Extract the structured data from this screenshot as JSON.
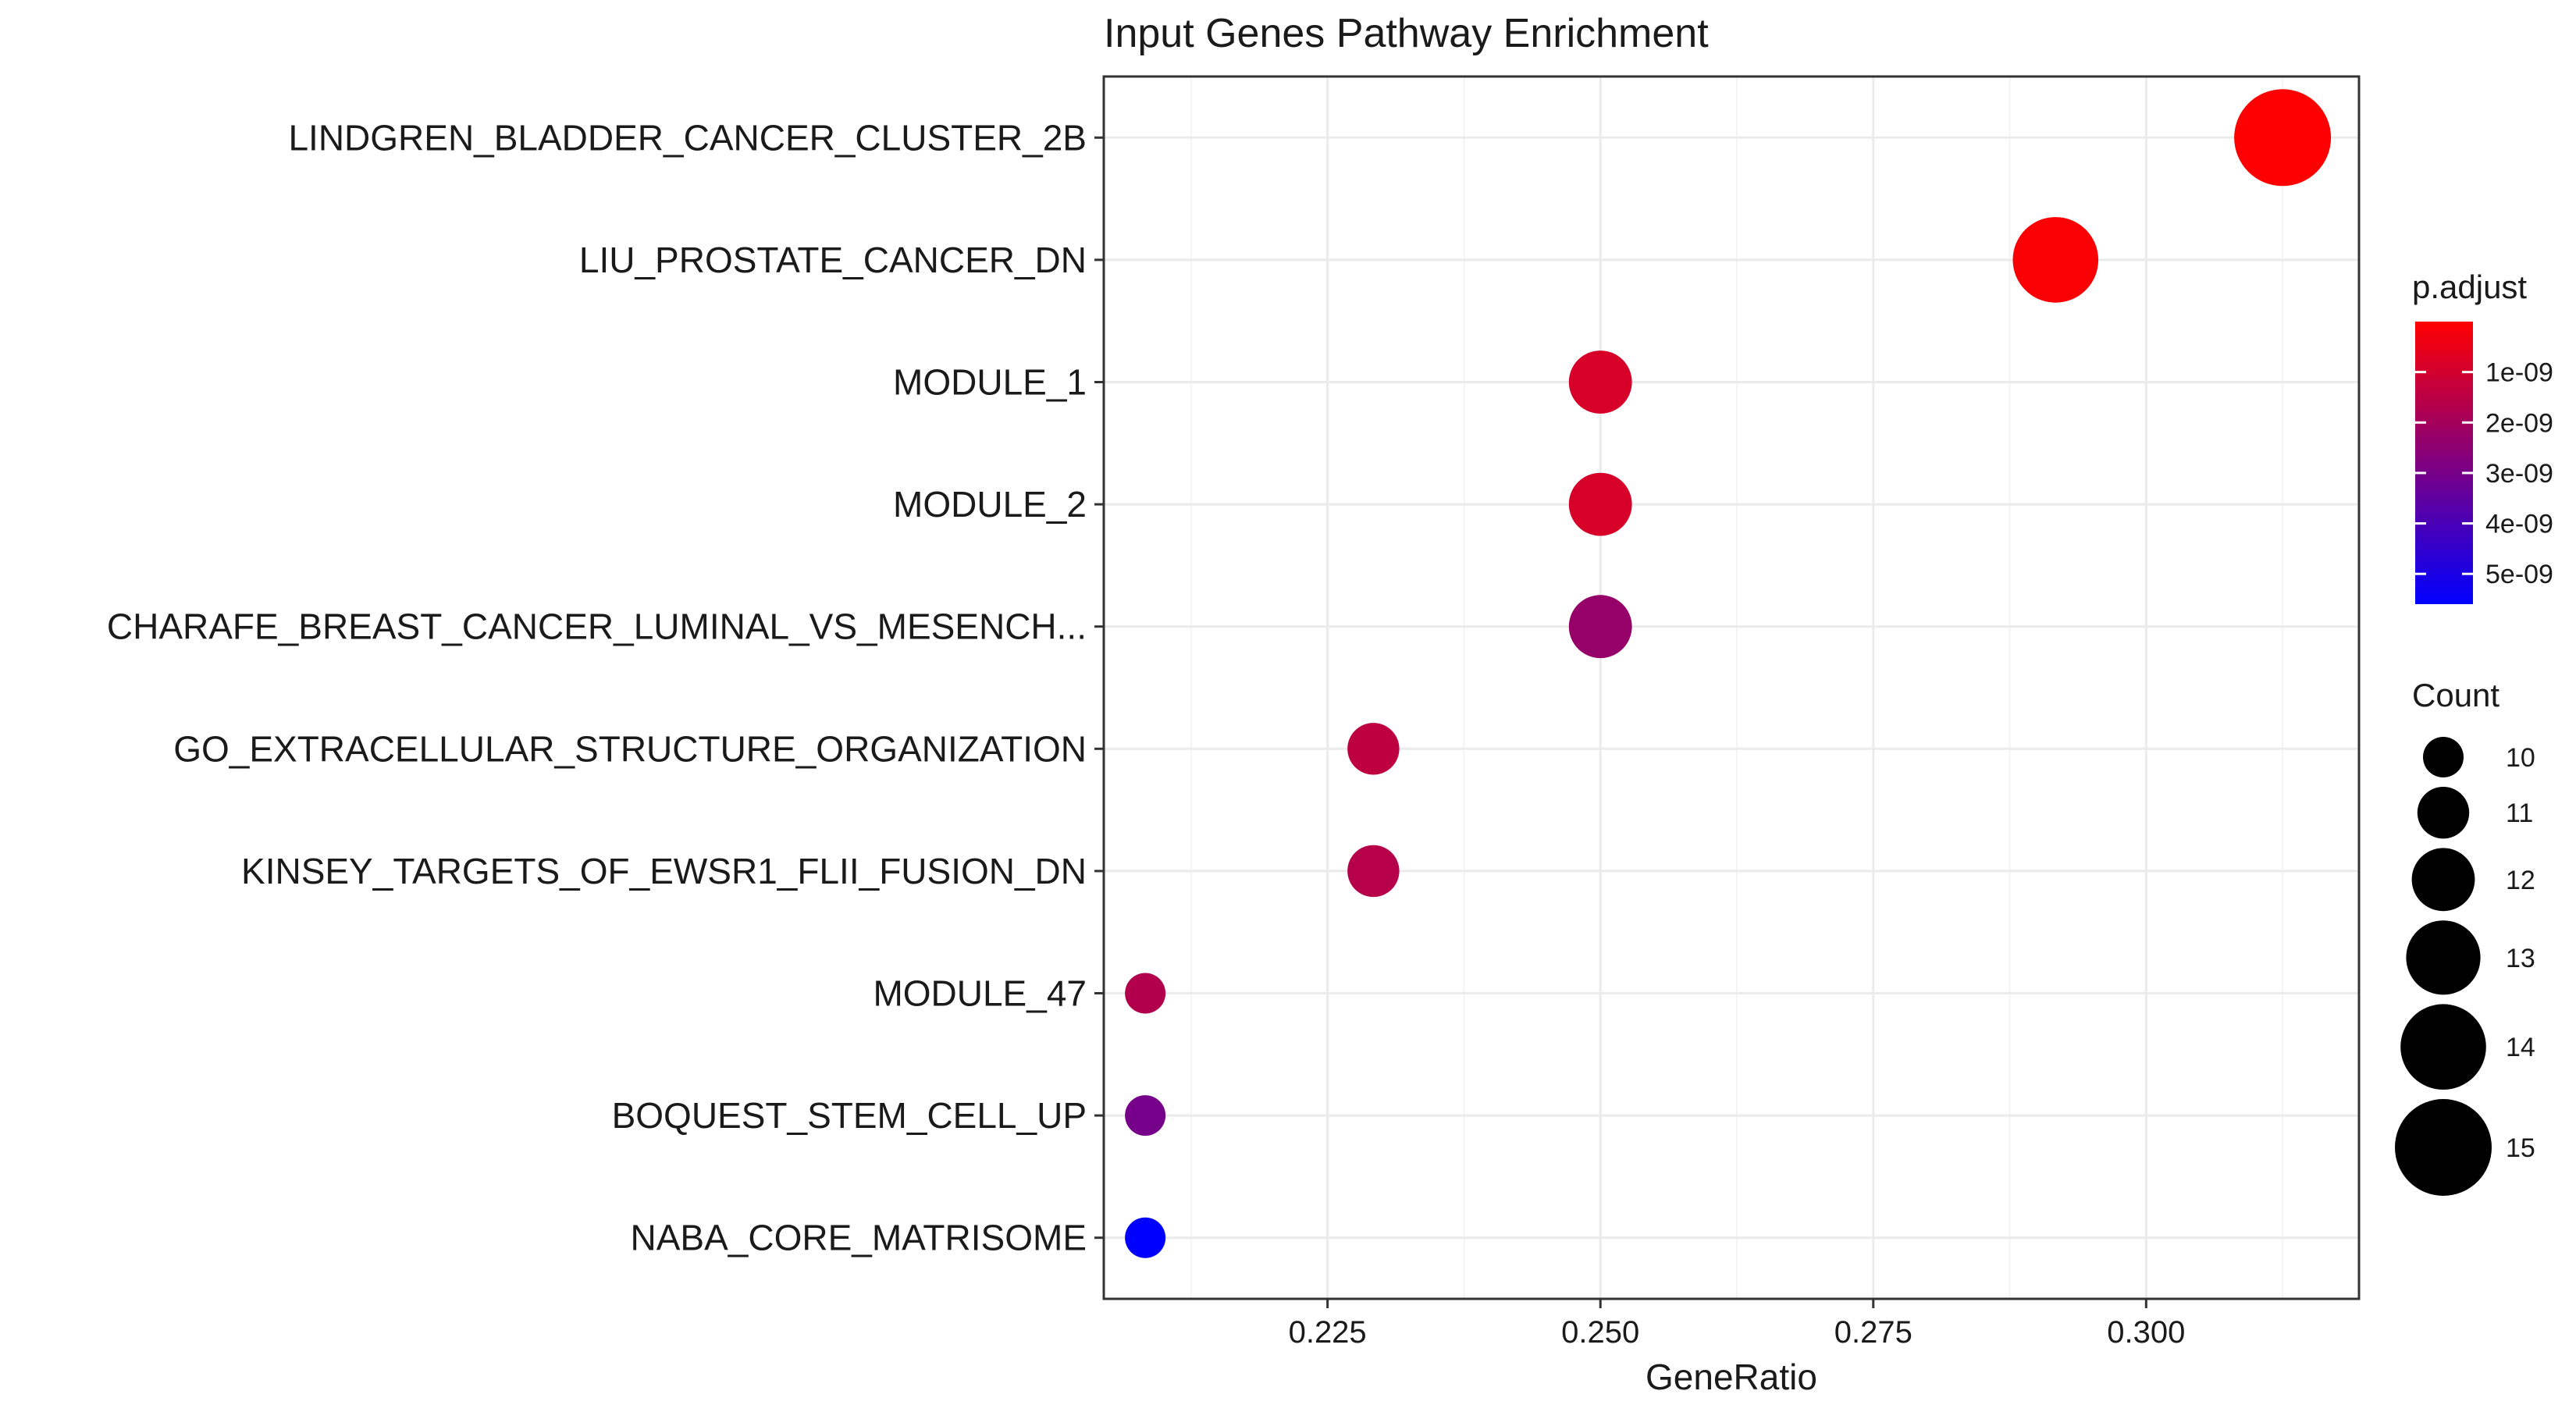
{
  "chart_data": {
    "type": "scatter",
    "title": "Input Genes Pathway Enrichment",
    "xlabel": "GeneRatio",
    "ylabel": "",
    "xlim": [
      0.2045,
      0.3195
    ],
    "x_ticks": [
      "0.225",
      "0.250",
      "0.275",
      "0.300"
    ],
    "x_tick_values": [
      0.225,
      0.25,
      0.275,
      0.3
    ],
    "grid": true,
    "legend_position": "right",
    "categories": [
      "LINDGREN_BLADDER_CANCER_CLUSTER_2B",
      "LIU_PROSTATE_CANCER_DN",
      "MODULE_1",
      "MODULE_2",
      "CHARAFE_BREAST_CANCER_LUMINAL_VS_MESENCH...",
      "GO_EXTRACELLULAR_STRUCTURE_ORGANIZATION",
      "KINSEY_TARGETS_OF_EWSR1_FLII_FUSION_DN",
      "MODULE_47",
      "BOQUEST_STEM_CELL_UP",
      "NABA_CORE_MATRISOME"
    ],
    "points": [
      {
        "category": "LINDGREN_BLADDER_CANCER_CLUSTER_2B",
        "gene_ratio": 0.3125,
        "count": 15,
        "p_adjust": 2e-11
      },
      {
        "category": "LIU_PROSTATE_CANCER_DN",
        "gene_ratio": 0.2917,
        "count": 14,
        "p_adjust": 1e-10
      },
      {
        "category": "MODULE_1",
        "gene_ratio": 0.25,
        "count": 12,
        "p_adjust": 9e-10
      },
      {
        "category": "MODULE_2",
        "gene_ratio": 0.25,
        "count": 12,
        "p_adjust": 9e-10
      },
      {
        "category": "CHARAFE_BREAST_CANCER_LUMINAL_VS_MESENCH...",
        "gene_ratio": 0.25,
        "count": 12,
        "p_adjust": 2.3e-09
      },
      {
        "category": "GO_EXTRACELLULAR_STRUCTURE_ORGANIZATION",
        "gene_ratio": 0.2292,
        "count": 11,
        "p_adjust": 1.4e-09
      },
      {
        "category": "KINSEY_TARGETS_OF_EWSR1_FLII_FUSION_DN",
        "gene_ratio": 0.2292,
        "count": 11,
        "p_adjust": 1.6e-09
      },
      {
        "category": "MODULE_47",
        "gene_ratio": 0.2083,
        "count": 10,
        "p_adjust": 1.7e-09
      },
      {
        "category": "BOQUEST_STEM_CELL_UP",
        "gene_ratio": 0.2083,
        "count": 10,
        "p_adjust": 3e-09
      },
      {
        "category": "NABA_CORE_MATRISOME",
        "gene_ratio": 0.2083,
        "count": 10,
        "p_adjust": 5.6e-09
      }
    ],
    "color_legend": {
      "title": "p.adjust",
      "low_color": "#ff0000",
      "high_color": "#0000ff",
      "range": [
        0,
        5.6e-09
      ],
      "ticks": [
        "1e-09",
        "2e-09",
        "3e-09",
        "4e-09",
        "5e-09"
      ],
      "tick_values": [
        1e-09,
        2e-09,
        3e-09,
        4e-09,
        5e-09
      ]
    },
    "size_legend": {
      "title": "Count",
      "values": [
        10,
        11,
        12,
        13,
        14,
        15
      ],
      "labels": [
        "10",
        "11",
        "12",
        "13",
        "14",
        "15"
      ]
    }
  }
}
